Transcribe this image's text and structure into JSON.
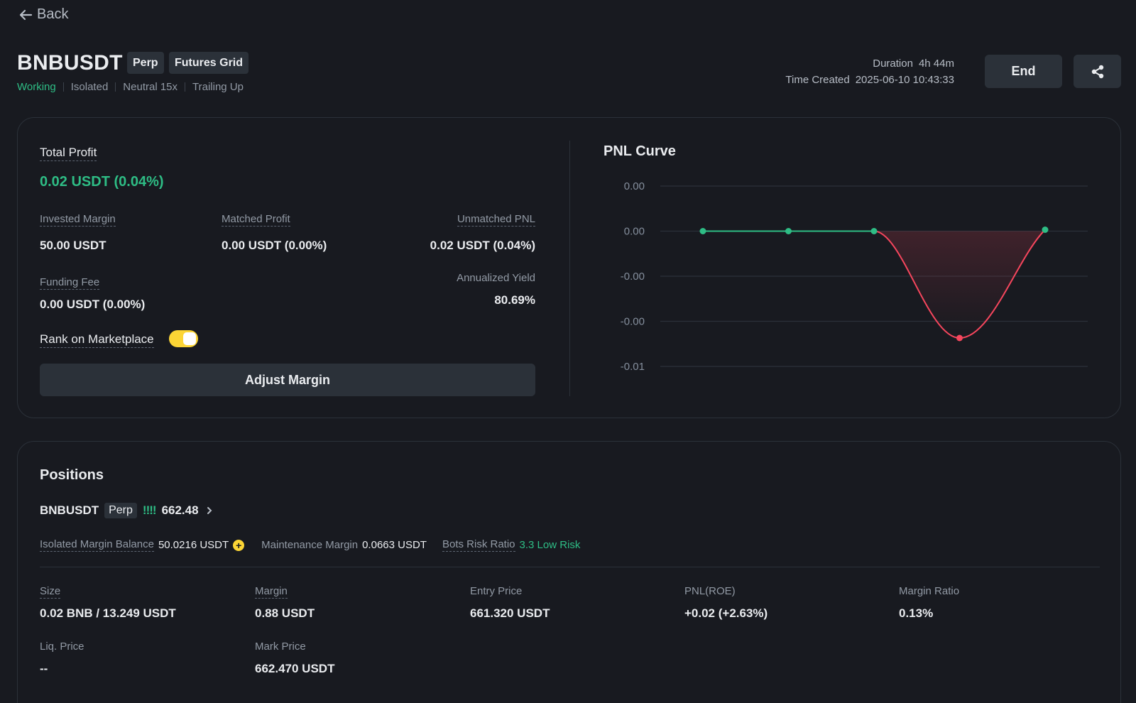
{
  "nav": {
    "back_label": "Back"
  },
  "header": {
    "symbol": "BNBUSDT",
    "tags": [
      "Perp",
      "Futures Grid"
    ],
    "status": "Working",
    "margin_mode": "Isolated",
    "direction_leverage": "Neutral 15x",
    "trailing": "Trailing Up",
    "duration_label": "Duration",
    "duration_value": "4h 44m",
    "created_label": "Time Created",
    "created_value": "2025-06-10 10:43:33",
    "end_label": "End",
    "share_icon": "share-icon"
  },
  "summary": {
    "total_profit_label": "Total Profit",
    "total_profit_value": "0.02 USDT (0.04%)",
    "invested_margin_label": "Invested Margin",
    "invested_margin_value": "50.00 USDT",
    "matched_profit_label": "Matched Profit",
    "matched_profit_value": "0.00 USDT (0.00%)",
    "unmatched_pnl_label": "Unmatched PNL",
    "unmatched_pnl_value": "0.02 USDT (0.04%)",
    "funding_fee_label": "Funding Fee",
    "funding_fee_value": "0.00 USDT (0.00%)",
    "annualized_yield_label": "Annualized Yield",
    "annualized_yield_value": "80.69%",
    "rank_label": "Rank on Marketplace",
    "rank_enabled": true,
    "adjust_margin_label": "Adjust Margin"
  },
  "chart_data": {
    "type": "line",
    "title": "PNL Curve",
    "y_tick_labels": [
      "0.00",
      "0.00",
      "-0.00",
      "-0.00",
      "-0.01"
    ],
    "ylim": [
      -0.01,
      0.005
    ],
    "x": [
      0,
      1,
      2,
      3,
      4
    ],
    "values": [
      0,
      0,
      0,
      -0.0059,
      0.0001
    ],
    "grid": true,
    "colors": {
      "positive": "#2ebd85",
      "negative": "#f6465d",
      "grid": "#2b3139"
    }
  },
  "positions": {
    "title": "Positions",
    "symbol": "BNBUSDT",
    "tag": "Perp",
    "price_icon": "bar-signal-icon",
    "price": "662.48",
    "isolated_margin_balance_label": "Isolated Margin Balance",
    "isolated_margin_balance_value": "50.0216 USDT",
    "maintenance_margin_label": "Maintenance Margin",
    "maintenance_margin_value": "0.0663 USDT",
    "bots_risk_ratio_label": "Bots Risk Ratio",
    "bots_risk_ratio_value": "3.3 Low Risk",
    "size_label": "Size",
    "size_value": "0.02 BNB / 13.249 USDT",
    "margin_label": "Margin",
    "margin_value": "0.88 USDT",
    "entry_price_label": "Entry Price",
    "entry_price_value": "661.320 USDT",
    "pnl_roe_label": "PNL(ROE)",
    "pnl_roe_value": "+0.02 (+2.63%)",
    "margin_ratio_label": "Margin Ratio",
    "margin_ratio_value": "0.13%",
    "liq_price_label": "Liq. Price",
    "liq_price_value": "--",
    "mark_price_label": "Mark Price",
    "mark_price_value": "662.470 USDT"
  }
}
